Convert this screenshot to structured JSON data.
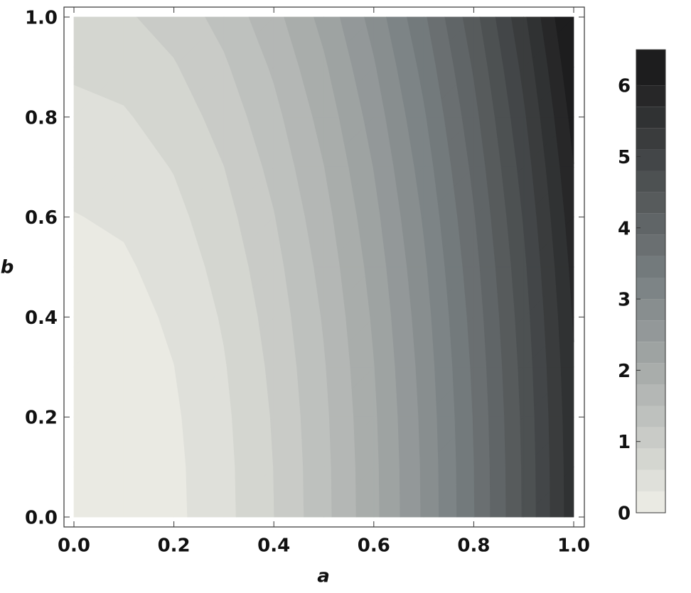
{
  "chart_data": {
    "type": "contour",
    "xlabel": "a",
    "ylabel": "b",
    "x": [
      0,
      0.1,
      0.2,
      0.3,
      0.4,
      0.5,
      0.6,
      0.7,
      0.8,
      0.9,
      1
    ],
    "y": [
      0,
      0.1,
      0.2,
      0.3,
      0.4,
      0.5,
      0.6,
      0.7,
      0.8,
      0.9,
      1
    ],
    "z": [
      [
        0,
        0.056,
        0.224,
        0.504,
        0.896,
        1.4,
        2.016,
        2.744,
        3.584,
        4.536,
        5.6
      ],
      [
        0.008,
        0.064,
        0.232,
        0.512,
        0.904,
        1.408,
        2.024,
        2.752,
        3.592,
        4.544,
        5.608
      ],
      [
        0.032,
        0.088,
        0.256,
        0.536,
        0.928,
        1.432,
        2.048,
        2.776,
        3.616,
        4.568,
        5.632
      ],
      [
        0.072,
        0.128,
        0.296,
        0.576,
        0.968,
        1.472,
        2.088,
        2.816,
        3.656,
        4.608,
        5.672
      ],
      [
        0.128,
        0.184,
        0.352,
        0.632,
        1.024,
        1.528,
        2.144,
        2.872,
        3.712,
        4.664,
        5.728
      ],
      [
        0.2,
        0.256,
        0.424,
        0.704,
        1.096,
        1.6,
        2.216,
        2.944,
        3.784,
        4.736,
        5.8
      ],
      [
        0.288,
        0.344,
        0.512,
        0.792,
        1.184,
        1.688,
        2.304,
        3.032,
        3.872,
        4.824,
        5.888
      ],
      [
        0.392,
        0.448,
        0.616,
        0.896,
        1.288,
        1.792,
        2.408,
        3.136,
        3.976,
        4.928,
        5.992
      ],
      [
        0.512,
        0.568,
        0.736,
        1.016,
        1.408,
        1.912,
        2.528,
        3.256,
        4.096,
        5.048,
        6.112
      ],
      [
        0.648,
        0.704,
        0.872,
        1.152,
        1.544,
        2.048,
        2.664,
        3.392,
        4.232,
        5.184,
        6.248
      ],
      [
        0.8,
        0.856,
        1.024,
        1.304,
        1.696,
        2.2,
        2.816,
        3.544,
        4.384,
        5.336,
        6.4
      ]
    ],
    "xlim": [
      0,
      1
    ],
    "ylim": [
      0,
      1
    ],
    "xticks": [
      {
        "value": 0,
        "label": "0.0"
      },
      {
        "value": 0.2,
        "label": "0.2"
      },
      {
        "value": 0.4,
        "label": "0.4"
      },
      {
        "value": 0.6,
        "label": "0.6"
      },
      {
        "value": 0.8,
        "label": "0.8"
      },
      {
        "value": 1,
        "label": "1.0"
      }
    ],
    "yticks": [
      {
        "value": 0,
        "label": "0.0"
      },
      {
        "value": 0.2,
        "label": "0.2"
      },
      {
        "value": 0.4,
        "label": "0.4"
      },
      {
        "value": 0.6,
        "label": "0.6"
      },
      {
        "value": 0.8,
        "label": "0.8"
      },
      {
        "value": 1,
        "label": "1.0"
      }
    ],
    "levels": [
      0,
      0.3,
      0.6,
      0.9,
      1.2,
      1.5,
      1.8,
      2.1,
      2.4,
      2.7,
      3,
      3.3,
      3.6,
      3.9,
      4.2,
      4.5,
      4.8,
      5.1,
      5.4,
      5.7,
      6,
      6.5
    ],
    "colormap": [
      "#eaeae3",
      "#7d8486",
      "#1d1d1e"
    ],
    "colorbar": {
      "lim": [
        0,
        6.5
      ],
      "ticks": [
        0,
        1,
        2,
        3,
        4,
        5,
        6
      ]
    }
  }
}
